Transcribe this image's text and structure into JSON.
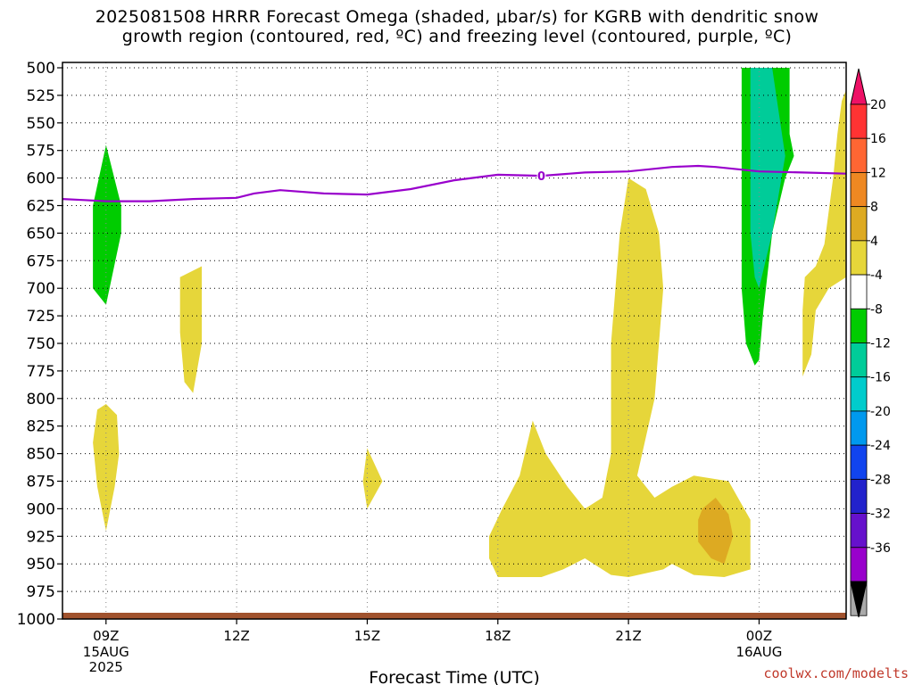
{
  "title_line1": "2025081508 HRRR Forecast Omega (shaded, μbar/s) for KGRB with dendritic snow",
  "title_line2": "growth region (contoured, red, ºC) and freezing level (contoured, purple, ºC)",
  "credit": "coolwx.com/modelts",
  "colors": {
    "freezing_line": "#9900cc",
    "ground": "#a0522d",
    "grid": "#000000"
  },
  "chart_data": {
    "type": "heatmap",
    "title": "2025081508 HRRR Forecast Omega (shaded, μbar/s) for KGRB with dendritic snow growth region (contoured, red, ºC) and freezing level (contoured, purple, ºC)",
    "xlabel": "Forecast Time (UTC)",
    "ylabel": "",
    "xlim_hours": [
      8,
      26
    ],
    "ylim_hpa": [
      1000,
      500
    ],
    "y_ticks": [
      500,
      525,
      550,
      575,
      600,
      625,
      650,
      675,
      700,
      725,
      750,
      775,
      800,
      825,
      850,
      875,
      900,
      925,
      950,
      975,
      1000
    ],
    "x_ticks": [
      {
        "hour": 9,
        "label": "09Z",
        "date": "15AUG",
        "year": "2025"
      },
      {
        "hour": 12,
        "label": "12Z"
      },
      {
        "hour": 15,
        "label": "15Z"
      },
      {
        "hour": 18,
        "label": "18Z"
      },
      {
        "hour": 21,
        "label": "21Z"
      },
      {
        "hour": 24,
        "label": "00Z",
        "date": "16AUG"
      }
    ],
    "grid": true,
    "colorbar": {
      "placement": "right",
      "labels": [
        "20",
        "16",
        "12",
        "8",
        "4",
        "-4",
        "-8",
        "-12",
        "-16",
        "-20",
        "-24",
        "-28",
        "-32",
        "-36"
      ],
      "colors": [
        "#ee1166",
        "#ff3333",
        "#ff6633",
        "#ee8822",
        "#ddaa22",
        "#e6d63a",
        "#ffffff",
        "#00cc00",
        "#00cc99",
        "#00cccc",
        "#0099ee",
        "#1144ee",
        "#2222cc",
        "#6611cc",
        "#9900cc",
        "#aaaaaa",
        "#000000"
      ]
    },
    "freezing_level": {
      "label": "0",
      "label_hour": 19.0,
      "points": [
        [
          8.0,
          619
        ],
        [
          8.5,
          620
        ],
        [
          9.0,
          621
        ],
        [
          10.0,
          621
        ],
        [
          11.0,
          619
        ],
        [
          12.0,
          618
        ],
        [
          12.4,
          614
        ],
        [
          13.0,
          611
        ],
        [
          14.0,
          614
        ],
        [
          15.0,
          615
        ],
        [
          16.0,
          610
        ],
        [
          17.0,
          602
        ],
        [
          18.0,
          597
        ],
        [
          19.0,
          598
        ],
        [
          20.0,
          595
        ],
        [
          21.0,
          594
        ],
        [
          22.0,
          590
        ],
        [
          22.6,
          589
        ],
        [
          23.0,
          590
        ],
        [
          24.0,
          594
        ],
        [
          25.0,
          595
        ],
        [
          26.0,
          596
        ]
      ]
    },
    "regions": [
      {
        "value_class": "-8",
        "color": "#00cc00",
        "points": [
          [
            9.0,
            570
          ],
          [
            9.35,
            625
          ],
          [
            9.35,
            650
          ],
          [
            9.0,
            715
          ],
          [
            8.7,
            700
          ],
          [
            8.7,
            625
          ]
        ]
      },
      {
        "value_class": "-8",
        "color": "#00cc00",
        "points": [
          [
            23.6,
            500
          ],
          [
            24.7,
            500
          ],
          [
            24.7,
            560
          ],
          [
            24.8,
            580
          ],
          [
            24.6,
            600
          ],
          [
            24.3,
            650
          ],
          [
            24.1,
            720
          ],
          [
            24.0,
            765
          ],
          [
            23.9,
            770
          ],
          [
            23.7,
            750
          ],
          [
            23.6,
            700
          ],
          [
            23.6,
            600
          ]
        ]
      },
      {
        "value_class": "-12",
        "color": "#00cc99",
        "points": [
          [
            23.8,
            500
          ],
          [
            24.3,
            500
          ],
          [
            24.6,
            580
          ],
          [
            24.3,
            650
          ],
          [
            24.0,
            700
          ],
          [
            23.9,
            690
          ],
          [
            23.8,
            650
          ],
          [
            23.8,
            580
          ]
        ]
      },
      {
        "value_class": "4",
        "color": "#e6d63a",
        "points": [
          [
            10.7,
            690
          ],
          [
            11.2,
            680
          ],
          [
            11.2,
            750
          ],
          [
            11.0,
            795
          ],
          [
            10.8,
            785
          ],
          [
            10.7,
            740
          ]
        ]
      },
      {
        "value_class": "4",
        "color": "#e6d63a",
        "points": [
          [
            8.8,
            810
          ],
          [
            9.0,
            805
          ],
          [
            9.25,
            815
          ],
          [
            9.3,
            850
          ],
          [
            9.2,
            880
          ],
          [
            9.0,
            920
          ],
          [
            8.8,
            880
          ],
          [
            8.7,
            840
          ]
        ]
      },
      {
        "value_class": "4",
        "color": "#e6d63a",
        "points": [
          [
            15.0,
            845
          ],
          [
            15.35,
            875
          ],
          [
            15.0,
            900
          ],
          [
            14.9,
            875
          ]
        ]
      },
      {
        "value_class": "4",
        "color": "#e6d63a",
        "points": [
          [
            21.0,
            600
          ],
          [
            21.4,
            610
          ],
          [
            21.7,
            650
          ],
          [
            21.8,
            700
          ],
          [
            21.6,
            800
          ],
          [
            21.2,
            870
          ],
          [
            21.6,
            890
          ],
          [
            22.0,
            880
          ],
          [
            22.5,
            870
          ],
          [
            23.3,
            875
          ],
          [
            23.8,
            910
          ],
          [
            23.8,
            955
          ],
          [
            23.2,
            962
          ],
          [
            22.5,
            960
          ],
          [
            22.0,
            950
          ],
          [
            21.8,
            955
          ],
          [
            21.0,
            962
          ],
          [
            20.6,
            960
          ],
          [
            20.0,
            945
          ],
          [
            19.5,
            955
          ],
          [
            19.0,
            962
          ],
          [
            18.0,
            962
          ],
          [
            17.8,
            945
          ],
          [
            17.8,
            925
          ],
          [
            18.1,
            900
          ],
          [
            18.5,
            870
          ],
          [
            18.8,
            820
          ],
          [
            19.1,
            850
          ],
          [
            19.6,
            880
          ],
          [
            20.0,
            900
          ],
          [
            20.4,
            890
          ],
          [
            20.6,
            850
          ],
          [
            20.6,
            800
          ],
          [
            20.6,
            750
          ],
          [
            20.8,
            650
          ]
        ]
      },
      {
        "value_class": "4",
        "color": "#e6d63a",
        "points": [
          [
            25.9,
            530
          ],
          [
            26.0,
            520
          ],
          [
            26.0,
            690
          ],
          [
            25.8,
            695
          ],
          [
            25.6,
            700
          ],
          [
            25.3,
            720
          ],
          [
            25.2,
            760
          ],
          [
            25.0,
            780
          ],
          [
            25.0,
            720
          ],
          [
            25.05,
            690
          ],
          [
            25.3,
            680
          ],
          [
            25.5,
            660
          ],
          [
            25.7,
            600
          ],
          [
            25.8,
            560
          ]
        ]
      },
      {
        "value_class": "8",
        "color": "#ddaa22",
        "points": [
          [
            22.7,
            900
          ],
          [
            23.0,
            890
          ],
          [
            23.3,
            905
          ],
          [
            23.4,
            925
          ],
          [
            23.2,
            950
          ],
          [
            22.9,
            945
          ],
          [
            22.6,
            930
          ],
          [
            22.6,
            910
          ]
        ]
      }
    ]
  }
}
